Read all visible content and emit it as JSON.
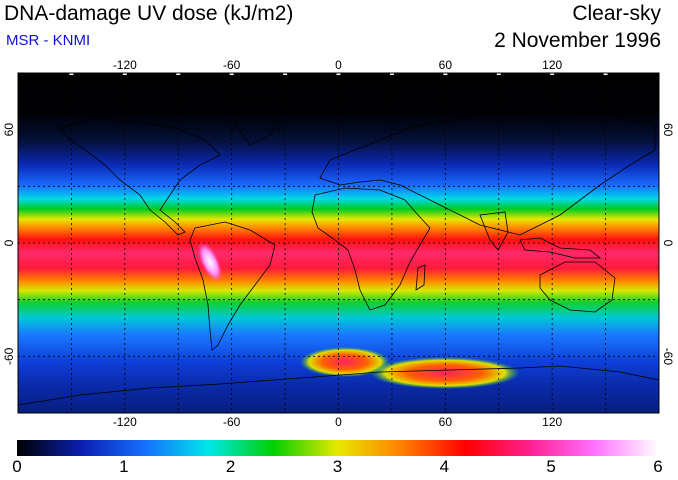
{
  "header": {
    "title": "DNA-damage UV dose (kJ/m2)",
    "credit": "MSR - KNMI",
    "sky_condition": "Clear-sky",
    "date": "2 November 1996"
  },
  "map": {
    "lon_ticks": [
      -120,
      -60,
      0,
      60,
      120
    ],
    "lon_labels": [
      "-120",
      "-60",
      "0",
      "60",
      "120"
    ],
    "lat_ticks": [
      60,
      0,
      -60
    ],
    "lat_labels": [
      "60",
      "0",
      "-60"
    ],
    "lon_range": [
      -180,
      180
    ],
    "lat_range": [
      -90,
      90
    ],
    "grid": true
  },
  "colorbar": {
    "min": 0,
    "max": 6,
    "labels": [
      "0",
      "1",
      "2",
      "3",
      "4",
      "5",
      "6"
    ],
    "colors": [
      "#000000",
      "#0a1fb0",
      "#1570ff",
      "#00e8e8",
      "#00d000",
      "#e8e800",
      "#ff8000",
      "#ff0000",
      "#ff2090",
      "#ff70ff",
      "#ffffff"
    ]
  },
  "colors": {
    "credit": "#1010e0"
  }
}
